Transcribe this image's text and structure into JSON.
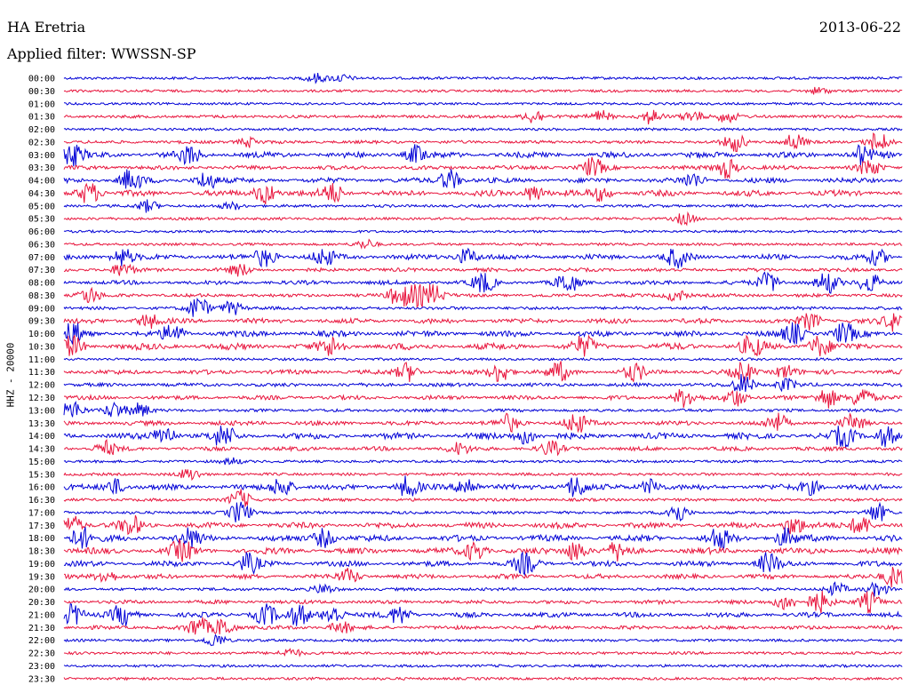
{
  "header": {
    "station": "HA Eretria",
    "date": "2013-06-22",
    "filter": "Applied filter: WWSSN-SP"
  },
  "chart_data": {
    "type": "line",
    "title": "HA Eretria",
    "subtitle": "Applied filter: WWSSN-SP",
    "ylabel": "HHZ - 20000",
    "xlabel": "",
    "grid": false,
    "colors": [
      "#0000d6",
      "#e8143c"
    ],
    "rows": [
      {
        "label": "00:00",
        "color": "#0000d6",
        "activity": 0.05,
        "events": [
          [
            0.3,
            0.4
          ],
          [
            0.33,
            0.3
          ]
        ]
      },
      {
        "label": "00:30",
        "color": "#e8143c",
        "activity": 0.05,
        "events": [
          [
            0.9,
            0.3
          ]
        ]
      },
      {
        "label": "01:00",
        "color": "#0000d6",
        "activity": 0.03,
        "events": []
      },
      {
        "label": "01:30",
        "color": "#e8143c",
        "activity": 0.1,
        "events": [
          [
            0.56,
            0.6
          ],
          [
            0.64,
            0.5
          ],
          [
            0.7,
            0.6
          ],
          [
            0.75,
            0.5
          ],
          [
            0.79,
            0.5
          ]
        ]
      },
      {
        "label": "02:00",
        "color": "#0000d6",
        "activity": 0.05,
        "events": []
      },
      {
        "label": "02:30",
        "color": "#e8143c",
        "activity": 0.12,
        "events": [
          [
            0.22,
            0.4
          ],
          [
            0.8,
            0.8
          ],
          [
            0.87,
            0.7
          ],
          [
            0.97,
            0.9
          ]
        ]
      },
      {
        "label": "03:00",
        "color": "#0000d6",
        "activity": 0.45,
        "events": [
          [
            0.01,
            1.0
          ],
          [
            0.15,
            0.8
          ],
          [
            0.42,
            0.8
          ],
          [
            0.95,
            0.8
          ]
        ]
      },
      {
        "label": "03:30",
        "color": "#e8143c",
        "activity": 0.25,
        "events": [
          [
            0.63,
            0.8
          ],
          [
            0.79,
            0.9
          ],
          [
            0.96,
            0.7
          ]
        ]
      },
      {
        "label": "04:00",
        "color": "#0000d6",
        "activity": 0.35,
        "events": [
          [
            0.08,
            1.0
          ],
          [
            0.17,
            0.8
          ],
          [
            0.46,
            0.9
          ],
          [
            0.75,
            0.6
          ]
        ]
      },
      {
        "label": "04:30",
        "color": "#e8143c",
        "activity": 0.45,
        "events": [
          [
            0.03,
            1.0
          ],
          [
            0.24,
            1.0
          ],
          [
            0.32,
            0.9
          ],
          [
            0.56,
            0.7
          ],
          [
            0.64,
            0.6
          ]
        ]
      },
      {
        "label": "05:00",
        "color": "#0000d6",
        "activity": 0.08,
        "events": [
          [
            0.1,
            0.5
          ],
          [
            0.2,
            0.3
          ]
        ]
      },
      {
        "label": "05:30",
        "color": "#e8143c",
        "activity": 0.06,
        "events": [
          [
            0.74,
            0.5
          ]
        ]
      },
      {
        "label": "06:00",
        "color": "#0000d6",
        "activity": 0.03,
        "events": []
      },
      {
        "label": "06:30",
        "color": "#e8143c",
        "activity": 0.05,
        "events": [
          [
            0.36,
            0.4
          ]
        ]
      },
      {
        "label": "07:00",
        "color": "#0000d6",
        "activity": 0.4,
        "events": [
          [
            0.07,
            0.8
          ],
          [
            0.24,
            0.8
          ],
          [
            0.31,
            0.7
          ],
          [
            0.48,
            0.7
          ],
          [
            0.73,
            0.8
          ],
          [
            0.97,
            0.6
          ]
        ]
      },
      {
        "label": "07:30",
        "color": "#e8143c",
        "activity": 0.18,
        "events": [
          [
            0.07,
            0.6
          ],
          [
            0.21,
            0.5
          ]
        ]
      },
      {
        "label": "08:00",
        "color": "#0000d6",
        "activity": 0.25,
        "events": [
          [
            0.5,
            0.9
          ],
          [
            0.6,
            0.9
          ],
          [
            0.84,
            0.9
          ],
          [
            0.91,
            0.9
          ],
          [
            0.96,
            0.9
          ]
        ]
      },
      {
        "label": "08:30",
        "color": "#e8143c",
        "activity": 0.15,
        "events": [
          [
            0.03,
            0.7
          ],
          [
            0.4,
            1.0
          ],
          [
            0.42,
            1.0
          ],
          [
            0.44,
            0.9
          ],
          [
            0.73,
            0.5
          ]
        ]
      },
      {
        "label": "09:00",
        "color": "#0000d6",
        "activity": 0.12,
        "events": [
          [
            0.16,
            1.0
          ],
          [
            0.2,
            0.6
          ]
        ]
      },
      {
        "label": "09:30",
        "color": "#e8143c",
        "activity": 0.35,
        "events": [
          [
            0.1,
            0.6
          ],
          [
            0.89,
            0.7
          ],
          [
            0.99,
            0.8
          ]
        ]
      },
      {
        "label": "10:00",
        "color": "#0000d6",
        "activity": 0.45,
        "events": [
          [
            0.01,
            1.0
          ],
          [
            0.13,
            0.8
          ],
          [
            0.87,
            0.9
          ],
          [
            0.93,
            0.9
          ]
        ]
      },
      {
        "label": "10:30",
        "color": "#e8143c",
        "activity": 0.55,
        "events": [
          [
            0.01,
            1.0
          ],
          [
            0.32,
            0.9
          ],
          [
            0.62,
            0.8
          ],
          [
            0.82,
            0.9
          ],
          [
            0.9,
            0.9
          ]
        ]
      },
      {
        "label": "11:00",
        "color": "#0000d6",
        "activity": 0.05,
        "events": []
      },
      {
        "label": "11:30",
        "color": "#e8143c",
        "activity": 0.3,
        "events": [
          [
            0.41,
            0.8
          ],
          [
            0.52,
            0.9
          ],
          [
            0.59,
            0.8
          ],
          [
            0.68,
            0.7
          ],
          [
            0.81,
            0.8
          ],
          [
            0.86,
            0.6
          ]
        ]
      },
      {
        "label": "12:00",
        "color": "#0000d6",
        "activity": 0.18,
        "events": [
          [
            0.81,
            0.9
          ],
          [
            0.86,
            0.5
          ]
        ]
      },
      {
        "label": "12:30",
        "color": "#e8143c",
        "activity": 0.25,
        "events": [
          [
            0.74,
            0.8
          ],
          [
            0.8,
            0.8
          ],
          [
            0.91,
            0.9
          ],
          [
            0.95,
            0.9
          ]
        ]
      },
      {
        "label": "13:00",
        "color": "#0000d6",
        "activity": 0.1,
        "events": [
          [
            0.01,
            0.8
          ],
          [
            0.06,
            0.7
          ],
          [
            0.09,
            0.6
          ]
        ]
      },
      {
        "label": "13:30",
        "color": "#e8143c",
        "activity": 0.3,
        "events": [
          [
            0.53,
            0.7
          ],
          [
            0.61,
            0.9
          ],
          [
            0.85,
            0.8
          ],
          [
            0.94,
            0.7
          ]
        ]
      },
      {
        "label": "14:00",
        "color": "#0000d6",
        "activity": 0.5,
        "events": [
          [
            0.12,
            0.9
          ],
          [
            0.19,
            1.0
          ],
          [
            0.55,
            0.7
          ],
          [
            0.93,
            0.9
          ],
          [
            0.98,
            0.9
          ]
        ]
      },
      {
        "label": "14:30",
        "color": "#e8143c",
        "activity": 0.25,
        "events": [
          [
            0.05,
            0.6
          ],
          [
            0.47,
            0.5
          ],
          [
            0.58,
            0.6
          ]
        ]
      },
      {
        "label": "15:00",
        "color": "#0000d6",
        "activity": 0.05,
        "events": [
          [
            0.2,
            0.3
          ]
        ]
      },
      {
        "label": "15:30",
        "color": "#e8143c",
        "activity": 0.08,
        "events": [
          [
            0.15,
            0.5
          ]
        ]
      },
      {
        "label": "16:00",
        "color": "#0000d6",
        "activity": 0.4,
        "events": [
          [
            0.06,
            0.7
          ],
          [
            0.26,
            0.9
          ],
          [
            0.41,
            0.9
          ],
          [
            0.48,
            0.9
          ],
          [
            0.61,
            1.0
          ],
          [
            0.7,
            0.7
          ],
          [
            0.89,
            0.6
          ]
        ]
      },
      {
        "label": "16:30",
        "color": "#e8143c",
        "activity": 0.1,
        "events": [
          [
            0.21,
            0.8
          ]
        ]
      },
      {
        "label": "17:00",
        "color": "#0000d6",
        "activity": 0.08,
        "events": [
          [
            0.21,
            1.0
          ],
          [
            0.73,
            0.9
          ],
          [
            0.97,
            0.8
          ]
        ]
      },
      {
        "label": "17:30",
        "color": "#e8143c",
        "activity": 0.45,
        "events": [
          [
            0.01,
            0.8
          ],
          [
            0.08,
            0.8
          ],
          [
            0.87,
            0.8
          ],
          [
            0.95,
            0.9
          ]
        ]
      },
      {
        "label": "18:00",
        "color": "#0000d6",
        "activity": 0.5,
        "events": [
          [
            0.02,
            1.0
          ],
          [
            0.15,
            0.9
          ],
          [
            0.31,
            0.8
          ],
          [
            0.78,
            1.0
          ],
          [
            0.86,
            0.8
          ]
        ]
      },
      {
        "label": "18:30",
        "color": "#e8143c",
        "activity": 0.5,
        "events": [
          [
            0.14,
            1.0
          ],
          [
            0.49,
            0.8
          ],
          [
            0.61,
            0.9
          ],
          [
            0.66,
            0.7
          ]
        ]
      },
      {
        "label": "19:00",
        "color": "#0000d6",
        "activity": 0.4,
        "events": [
          [
            0.22,
            0.8
          ],
          [
            0.55,
            0.9
          ],
          [
            0.84,
            0.9
          ]
        ]
      },
      {
        "label": "19:30",
        "color": "#e8143c",
        "activity": 0.3,
        "events": [
          [
            0.05,
            0.6
          ],
          [
            0.34,
            0.6
          ],
          [
            0.99,
            1.0
          ]
        ]
      },
      {
        "label": "20:00",
        "color": "#0000d6",
        "activity": 0.1,
        "events": [
          [
            0.31,
            0.4
          ],
          [
            0.92,
            0.5
          ],
          [
            0.97,
            0.6
          ]
        ]
      },
      {
        "label": "20:30",
        "color": "#e8143c",
        "activity": 0.2,
        "events": [
          [
            0.86,
            0.7
          ],
          [
            0.9,
            1.0
          ],
          [
            0.96,
            0.9
          ]
        ]
      },
      {
        "label": "21:00",
        "color": "#0000d6",
        "activity": 0.35,
        "events": [
          [
            0.01,
            1.0
          ],
          [
            0.07,
            0.9
          ],
          [
            0.24,
            1.0
          ],
          [
            0.28,
            0.9
          ],
          [
            0.32,
            0.9
          ],
          [
            0.4,
            0.8
          ]
        ]
      },
      {
        "label": "21:30",
        "color": "#e8143c",
        "activity": 0.2,
        "events": [
          [
            0.16,
            0.9
          ],
          [
            0.19,
            0.8
          ],
          [
            0.33,
            0.5
          ]
        ]
      },
      {
        "label": "22:00",
        "color": "#0000d6",
        "activity": 0.05,
        "events": [
          [
            0.18,
            0.6
          ]
        ]
      },
      {
        "label": "22:30",
        "color": "#e8143c",
        "activity": 0.08,
        "events": [
          [
            0.27,
            0.4
          ]
        ]
      },
      {
        "label": "23:00",
        "color": "#0000d6",
        "activity": 0.06,
        "events": []
      },
      {
        "label": "23:30",
        "color": "#e8143c",
        "activity": 0.06,
        "events": []
      }
    ]
  }
}
